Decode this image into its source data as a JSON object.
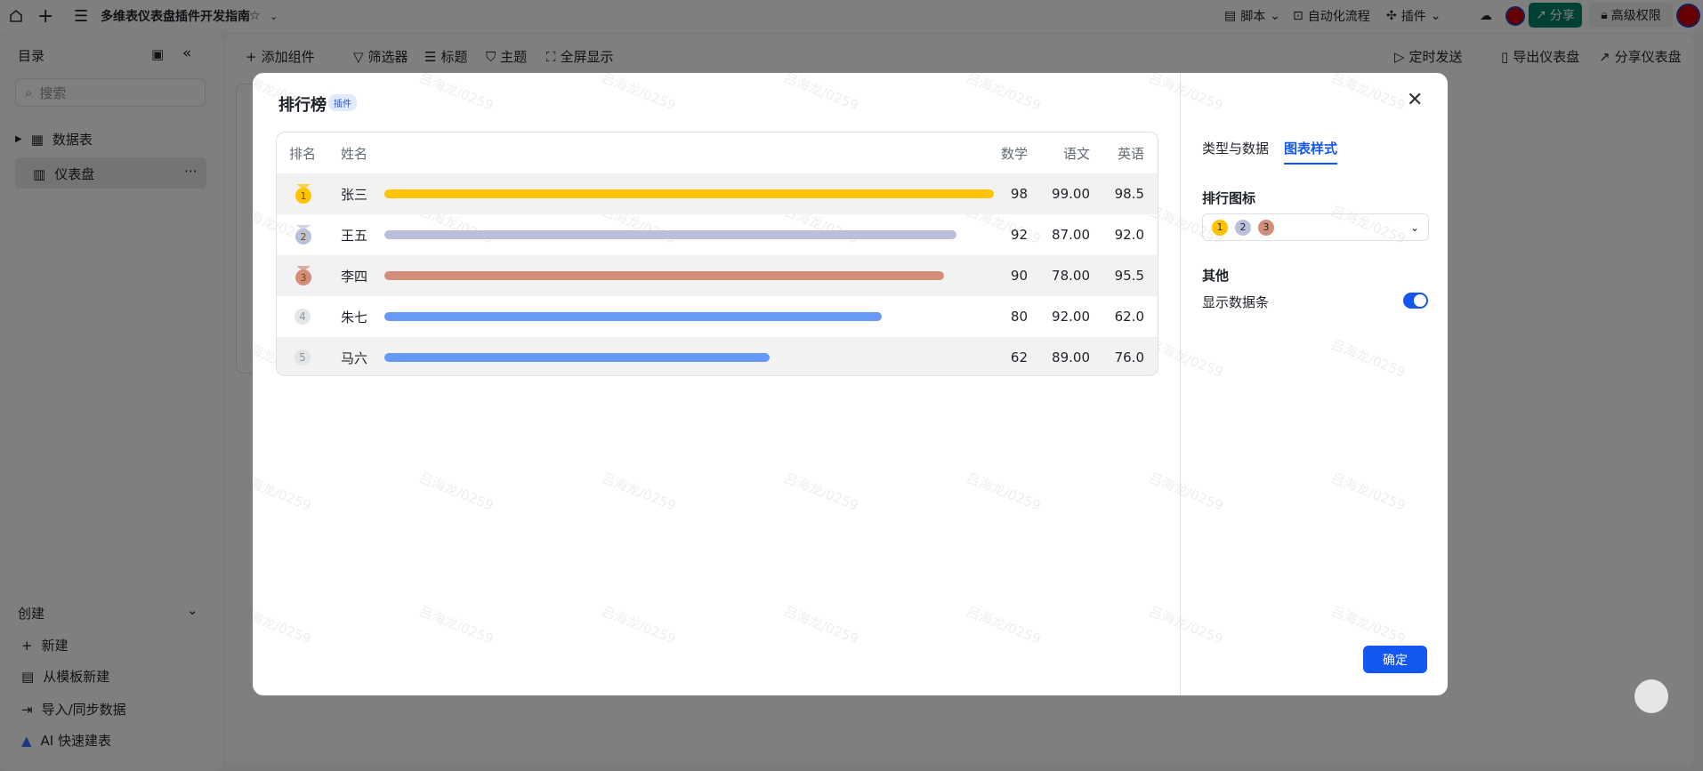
{
  "topbar": {
    "title": "多维表仪表盘插件开发指南",
    "script": "脚本",
    "automation": "自动化流程",
    "plugin": "插件",
    "share": "分享",
    "permission": "高级权限"
  },
  "sidebar": {
    "title": "目录",
    "search_placeholder": "搜索",
    "items": [
      {
        "label": "数据表"
      },
      {
        "label": "仪表盘"
      }
    ],
    "create": "创建",
    "create_items": [
      {
        "label": "新建"
      },
      {
        "label": "从模板新建"
      },
      {
        "label": "导入/同步数据"
      },
      {
        "label": "AI 快速建表"
      }
    ]
  },
  "toolbar": {
    "add": "添加组件",
    "filter": "筛选器",
    "heading": "标题",
    "theme": "主题",
    "fullscreen": "全屏显示",
    "schedule": "定时发送",
    "export": "导出仪表盘",
    "share": "分享仪表盘"
  },
  "modal": {
    "title": "排行榜",
    "badge": "插件",
    "watermark": "吕海龙/0259",
    "table": {
      "headers": [
        "排名",
        "姓名",
        "数学",
        "语文",
        "英语"
      ],
      "rows": [
        {
          "rank": "1",
          "name": "张三",
          "math": "98",
          "chinese": "99.00",
          "english": "98.5",
          "bar_value": 98,
          "color": "#ffc300"
        },
        {
          "rank": "2",
          "name": "王五",
          "math": "92",
          "chinese": "87.00",
          "english": "92.0",
          "bar_value": 92,
          "color": "#bac0d9"
        },
        {
          "rank": "3",
          "name": "李四",
          "math": "90",
          "chinese": "78.00",
          "english": "95.5",
          "bar_value": 90,
          "color": "#d38d7b"
        },
        {
          "rank": "4",
          "name": "朱七",
          "math": "80",
          "chinese": "92.00",
          "english": "62.0",
          "bar_value": 80,
          "color": "#6799f8"
        },
        {
          "rank": "5",
          "name": "马六",
          "math": "62",
          "chinese": "89.00",
          "english": "76.0",
          "bar_value": 62,
          "color": "#6799f8"
        }
      ],
      "bar_max": 98
    },
    "tabs": [
      "类型与数据",
      "图表样式"
    ],
    "active_tab": 1,
    "rank_icon_label": "排行图标",
    "rank_icon_options": [
      "1",
      "2",
      "3"
    ],
    "other_label": "其他",
    "show_bar_label": "显示数据条",
    "show_bar": true,
    "confirm": "确定",
    "accent": "#1456f0"
  }
}
